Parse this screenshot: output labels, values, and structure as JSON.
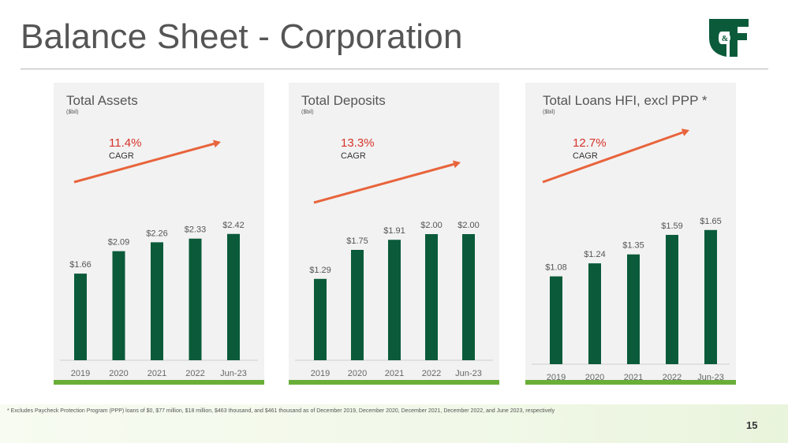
{
  "page": {
    "title": "Balance Sheet - Corporation",
    "footnote": "* Excludes Paycheck Protection Program (PPP) loans of $0, $77 million, $18 million, $463 thousand, and $461 thousand as of December 2019, December 2020, December 2021, December 2022, and June 2023, respectively",
    "page_number": "15",
    "logo_text": "C&F"
  },
  "colors": {
    "bar": "#0b5b3b",
    "arrow": "#e8643c",
    "cagr": "#d7332a",
    "accent_green": "#6aae3a",
    "panel_bg": "#f2f2f2"
  },
  "chart_data": [
    {
      "type": "bar",
      "title": "Total Assets",
      "unit": "($bil)",
      "categories": [
        "2019",
        "2020",
        "2021",
        "2022",
        "Jun-23"
      ],
      "values": [
        1.66,
        2.09,
        2.26,
        2.33,
        2.42
      ],
      "labels": [
        "$1.66",
        "$2.09",
        "$2.26",
        "$2.33",
        "$2.42"
      ],
      "ylim": [
        0,
        2.9
      ],
      "cagr": "11.4%",
      "cagr_label": "CAGR"
    },
    {
      "type": "bar",
      "title": "Total Deposits",
      "unit": "($bil)",
      "categories": [
        "2019",
        "2020",
        "2021",
        "2022",
        "Jun-23"
      ],
      "values": [
        1.29,
        1.75,
        1.91,
        2.0,
        2.0
      ],
      "labels": [
        "$1.29",
        "$1.75",
        "$1.91",
        "$2.00",
        "$2.00"
      ],
      "ylim": [
        0,
        2.4
      ],
      "cagr": "13.3%",
      "cagr_label": "CAGR"
    },
    {
      "type": "bar",
      "title": "Total Loans HFI, excl PPP *",
      "unit": "($bil)",
      "categories": [
        "2019",
        "2020",
        "2021",
        "2022",
        "Jun-23"
      ],
      "values": [
        1.08,
        1.24,
        1.35,
        1.59,
        1.65
      ],
      "labels": [
        "$1.08",
        "$1.24",
        "$1.35",
        "$1.59",
        "$1.65"
      ],
      "ylim": [
        0,
        1.9
      ],
      "cagr": "12.7%",
      "cagr_label": "CAGR"
    }
  ]
}
